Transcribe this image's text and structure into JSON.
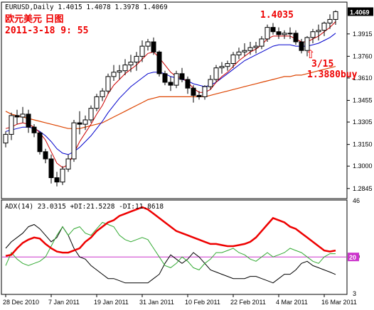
{
  "header": {
    "symbol_line": "EURUSD,Daily  1.4015 1.4078 1.3978 1.4069",
    "title_cn": "欧元美元 日图",
    "datetime": "2011-3-18 9: 55"
  },
  "annotations": {
    "high_label": "1.4035",
    "buy_date": "3/15",
    "buy_price": "1.3880buy",
    "buy_arrow": "⇧"
  },
  "price_axis": {
    "current_price": "1.4069",
    "ticks": [
      "1.3915",
      "1.3760",
      "1.3610",
      "1.3455",
      "1.3305",
      "1.3150",
      "1.3000",
      "1.2845"
    ],
    "range": [
      1.278,
      1.413
    ]
  },
  "indicator": {
    "label": "ADX(14) 23.0315 +DI:21.5228 -DI:11.8618",
    "ticks": [
      "46",
      "20",
      "3"
    ],
    "level_label": "20",
    "range": [
      3,
      46
    ]
  },
  "time_axis": {
    "labels": [
      "28 Dec 2010",
      "7 Jan 2011",
      "19 Jan 2011",
      "31 Jan 2011",
      "10 Feb 2011",
      "22 Feb 2011",
      "4 Mar 2011",
      "16 Mar 2011"
    ]
  },
  "colors": {
    "bull": "#ffffff",
    "bear": "#000000",
    "ma_fast": "#cc0000",
    "ma_mid": "#0000cc",
    "ma_slow": "#dd4400",
    "adx": "#ee0000",
    "plus_di": "#33aa33",
    "minus_di": "#000000",
    "level": "#cc33cc",
    "annotation": "#ee0000",
    "current_bg": "#000000"
  },
  "chart_data": [
    {
      "type": "candlestick",
      "title": "EURUSD,Daily",
      "ylim": [
        1.278,
        1.413
      ],
      "x": [
        "2010-12-28",
        "2010-12-29",
        "2010-12-30",
        "2010-12-31",
        "2011-01-03",
        "2011-01-04",
        "2011-01-05",
        "2011-01-06",
        "2011-01-07",
        "2011-01-10",
        "2011-01-11",
        "2011-01-12",
        "2011-01-13",
        "2011-01-14",
        "2011-01-17",
        "2011-01-18",
        "2011-01-19",
        "2011-01-20",
        "2011-01-21",
        "2011-01-24",
        "2011-01-25",
        "2011-01-26",
        "2011-01-27",
        "2011-01-28",
        "2011-01-31",
        "2011-02-01",
        "2011-02-02",
        "2011-02-03",
        "2011-02-04",
        "2011-02-07",
        "2011-02-08",
        "2011-02-09",
        "2011-02-10",
        "2011-02-11",
        "2011-02-14",
        "2011-02-15",
        "2011-02-16",
        "2011-02-17",
        "2011-02-18",
        "2011-02-21",
        "2011-02-22",
        "2011-02-23",
        "2011-02-24",
        "2011-02-25",
        "2011-02-28",
        "2011-03-01",
        "2011-03-02",
        "2011-03-03",
        "2011-03-04",
        "2011-03-07",
        "2011-03-08",
        "2011-03-09",
        "2011-03-10",
        "2011-03-11",
        "2011-03-14",
        "2011-03-15",
        "2011-03-16",
        "2011-03-17",
        "2011-03-18"
      ],
      "open": [
        1.316,
        1.322,
        1.335,
        1.334,
        1.336,
        1.327,
        1.323,
        1.31,
        1.305,
        1.292,
        1.289,
        1.298,
        1.305,
        1.33,
        1.329,
        1.332,
        1.34,
        1.348,
        1.352,
        1.362,
        1.365,
        1.366,
        1.37,
        1.372,
        1.376,
        1.383,
        1.386,
        1.379,
        1.364,
        1.358,
        1.356,
        1.364,
        1.36,
        1.354,
        1.349,
        1.348,
        1.355,
        1.36,
        1.368,
        1.369,
        1.371,
        1.377,
        1.379,
        1.38,
        1.382,
        1.383,
        1.388,
        1.396,
        1.393,
        1.391,
        1.392,
        1.392,
        1.386,
        1.38,
        1.389,
        1.393,
        1.394,
        1.399,
        1.4015
      ],
      "high": [
        1.324,
        1.337,
        1.339,
        1.341,
        1.339,
        1.329,
        1.324,
        1.312,
        1.308,
        1.296,
        1.3,
        1.308,
        1.332,
        1.338,
        1.335,
        1.342,
        1.35,
        1.354,
        1.364,
        1.37,
        1.37,
        1.374,
        1.377,
        1.379,
        1.387,
        1.388,
        1.389,
        1.38,
        1.366,
        1.362,
        1.366,
        1.368,
        1.362,
        1.356,
        1.352,
        1.356,
        1.363,
        1.37,
        1.372,
        1.373,
        1.379,
        1.382,
        1.385,
        1.386,
        1.386,
        1.39,
        1.398,
        1.399,
        1.396,
        1.394,
        1.396,
        1.394,
        1.388,
        1.39,
        1.395,
        1.398,
        1.4,
        1.405,
        1.4078
      ],
      "low": [
        1.313,
        1.318,
        1.329,
        1.33,
        1.323,
        1.32,
        1.308,
        1.302,
        1.288,
        1.286,
        1.287,
        1.296,
        1.303,
        1.322,
        1.325,
        1.33,
        1.338,
        1.345,
        1.35,
        1.359,
        1.36,
        1.363,
        1.365,
        1.366,
        1.372,
        1.38,
        1.377,
        1.362,
        1.356,
        1.352,
        1.354,
        1.358,
        1.35,
        1.344,
        1.346,
        1.346,
        1.353,
        1.358,
        1.364,
        1.366,
        1.368,
        1.374,
        1.376,
        1.377,
        1.378,
        1.381,
        1.386,
        1.391,
        1.388,
        1.388,
        1.388,
        1.384,
        1.378,
        1.376,
        1.385,
        1.387,
        1.39,
        1.395,
        1.3978
      ],
      "close": [
        1.322,
        1.335,
        1.334,
        1.336,
        1.327,
        1.323,
        1.31,
        1.305,
        1.292,
        1.289,
        1.298,
        1.305,
        1.33,
        1.329,
        1.332,
        1.34,
        1.348,
        1.352,
        1.362,
        1.365,
        1.366,
        1.37,
        1.372,
        1.376,
        1.383,
        1.386,
        1.379,
        1.364,
        1.358,
        1.356,
        1.364,
        1.36,
        1.354,
        1.349,
        1.348,
        1.355,
        1.36,
        1.368,
        1.369,
        1.371,
        1.377,
        1.379,
        1.38,
        1.382,
        1.383,
        1.388,
        1.396,
        1.393,
        1.391,
        1.392,
        1.392,
        1.386,
        1.38,
        1.389,
        1.393,
        1.394,
        1.399,
        1.4015,
        1.4069
      ],
      "ma_fast": [
        1.326,
        1.327,
        1.329,
        1.33,
        1.329,
        1.327,
        1.323,
        1.318,
        1.31,
        1.302,
        1.299,
        1.301,
        1.309,
        1.317,
        1.323,
        1.329,
        1.336,
        1.342,
        1.35,
        1.356,
        1.36,
        1.364,
        1.367,
        1.37,
        1.374,
        1.378,
        1.379,
        1.375,
        1.37,
        1.365,
        1.362,
        1.361,
        1.358,
        1.354,
        1.351,
        1.351,
        1.353,
        1.358,
        1.362,
        1.365,
        1.369,
        1.373,
        1.376,
        1.379,
        1.381,
        1.384,
        1.388,
        1.39,
        1.39,
        1.39,
        1.39,
        1.388,
        1.386,
        1.386,
        1.388,
        1.39,
        1.393,
        1.396,
        1.4
      ],
      "ma_mid": [
        1.324,
        1.325,
        1.326,
        1.327,
        1.327,
        1.326,
        1.324,
        1.321,
        1.317,
        1.312,
        1.309,
        1.308,
        1.31,
        1.313,
        1.317,
        1.321,
        1.326,
        1.331,
        1.337,
        1.342,
        1.347,
        1.351,
        1.355,
        1.358,
        1.361,
        1.364,
        1.365,
        1.365,
        1.364,
        1.362,
        1.361,
        1.36,
        1.359,
        1.357,
        1.356,
        1.355,
        1.356,
        1.358,
        1.361,
        1.364,
        1.367,
        1.37,
        1.373,
        1.375,
        1.377,
        1.379,
        1.381,
        1.383,
        1.384,
        1.384,
        1.384,
        1.383,
        1.383,
        1.383,
        1.384,
        1.385,
        1.387,
        1.389,
        1.392
      ],
      "ma_slow": [
        1.338,
        1.336,
        1.335,
        1.334,
        1.333,
        1.332,
        1.331,
        1.33,
        1.329,
        1.328,
        1.327,
        1.326,
        1.326,
        1.326,
        1.327,
        1.328,
        1.329,
        1.33,
        1.332,
        1.334,
        1.336,
        1.338,
        1.34,
        1.342,
        1.344,
        1.346,
        1.347,
        1.348,
        1.348,
        1.348,
        1.348,
        1.348,
        1.348,
        1.348,
        1.348,
        1.348,
        1.349,
        1.35,
        1.351,
        1.352,
        1.353,
        1.354,
        1.355,
        1.356,
        1.357,
        1.358,
        1.359,
        1.36,
        1.361,
        1.362,
        1.362,
        1.363,
        1.363,
        1.364,
        1.365,
        1.366,
        1.367,
        1.368,
        1.369
      ]
    },
    {
      "type": "line",
      "title": "ADX(14) 23.0315 +DI:21.5228 -DI:11.8618",
      "ylim": [
        3,
        46
      ],
      "level": 20,
      "series": [
        {
          "name": "ADX",
          "values": [
            20.5,
            21,
            24,
            26.5,
            28,
            29,
            28.5,
            26,
            24,
            22.5,
            22,
            22,
            23,
            24,
            27,
            29,
            32,
            34,
            36,
            37,
            39,
            40,
            41,
            42,
            43,
            42,
            40,
            38,
            36,
            34,
            32,
            31,
            30,
            29,
            28,
            27,
            26,
            26,
            25.5,
            25,
            25,
            25.5,
            26,
            27,
            29,
            32,
            35,
            38,
            37,
            36,
            34,
            33,
            31,
            29,
            27,
            25,
            23,
            22.5,
            23
          ]
        },
        {
          "name": "+DI",
          "values": [
            16,
            22,
            19,
            17,
            16,
            17,
            18,
            20,
            25,
            30,
            34,
            30,
            33,
            34,
            31,
            30,
            33,
            36,
            35,
            34,
            30,
            28,
            27,
            28,
            29,
            28,
            24,
            20,
            16,
            15,
            17,
            20,
            18,
            15,
            14,
            17,
            19,
            22,
            22,
            23,
            24,
            22,
            21,
            19,
            18,
            20,
            22,
            20,
            21,
            22,
            24,
            23,
            22,
            20,
            18,
            17,
            20,
            21.5,
            21.5
          ]
        },
        {
          "name": "-DI",
          "values": [
            24,
            27,
            29,
            31,
            34,
            35,
            33,
            30,
            27,
            29,
            34,
            30,
            24,
            20,
            19,
            16,
            14,
            12,
            10,
            10,
            9,
            8,
            8,
            8,
            8,
            8,
            10,
            12,
            17,
            21,
            19,
            17,
            19,
            22,
            20,
            17,
            14,
            13,
            12,
            11,
            10,
            10,
            10,
            11,
            11,
            10,
            9,
            8,
            10,
            12,
            12,
            14,
            17,
            18,
            16,
            15,
            14,
            13,
            11.9
          ]
        }
      ]
    }
  ]
}
